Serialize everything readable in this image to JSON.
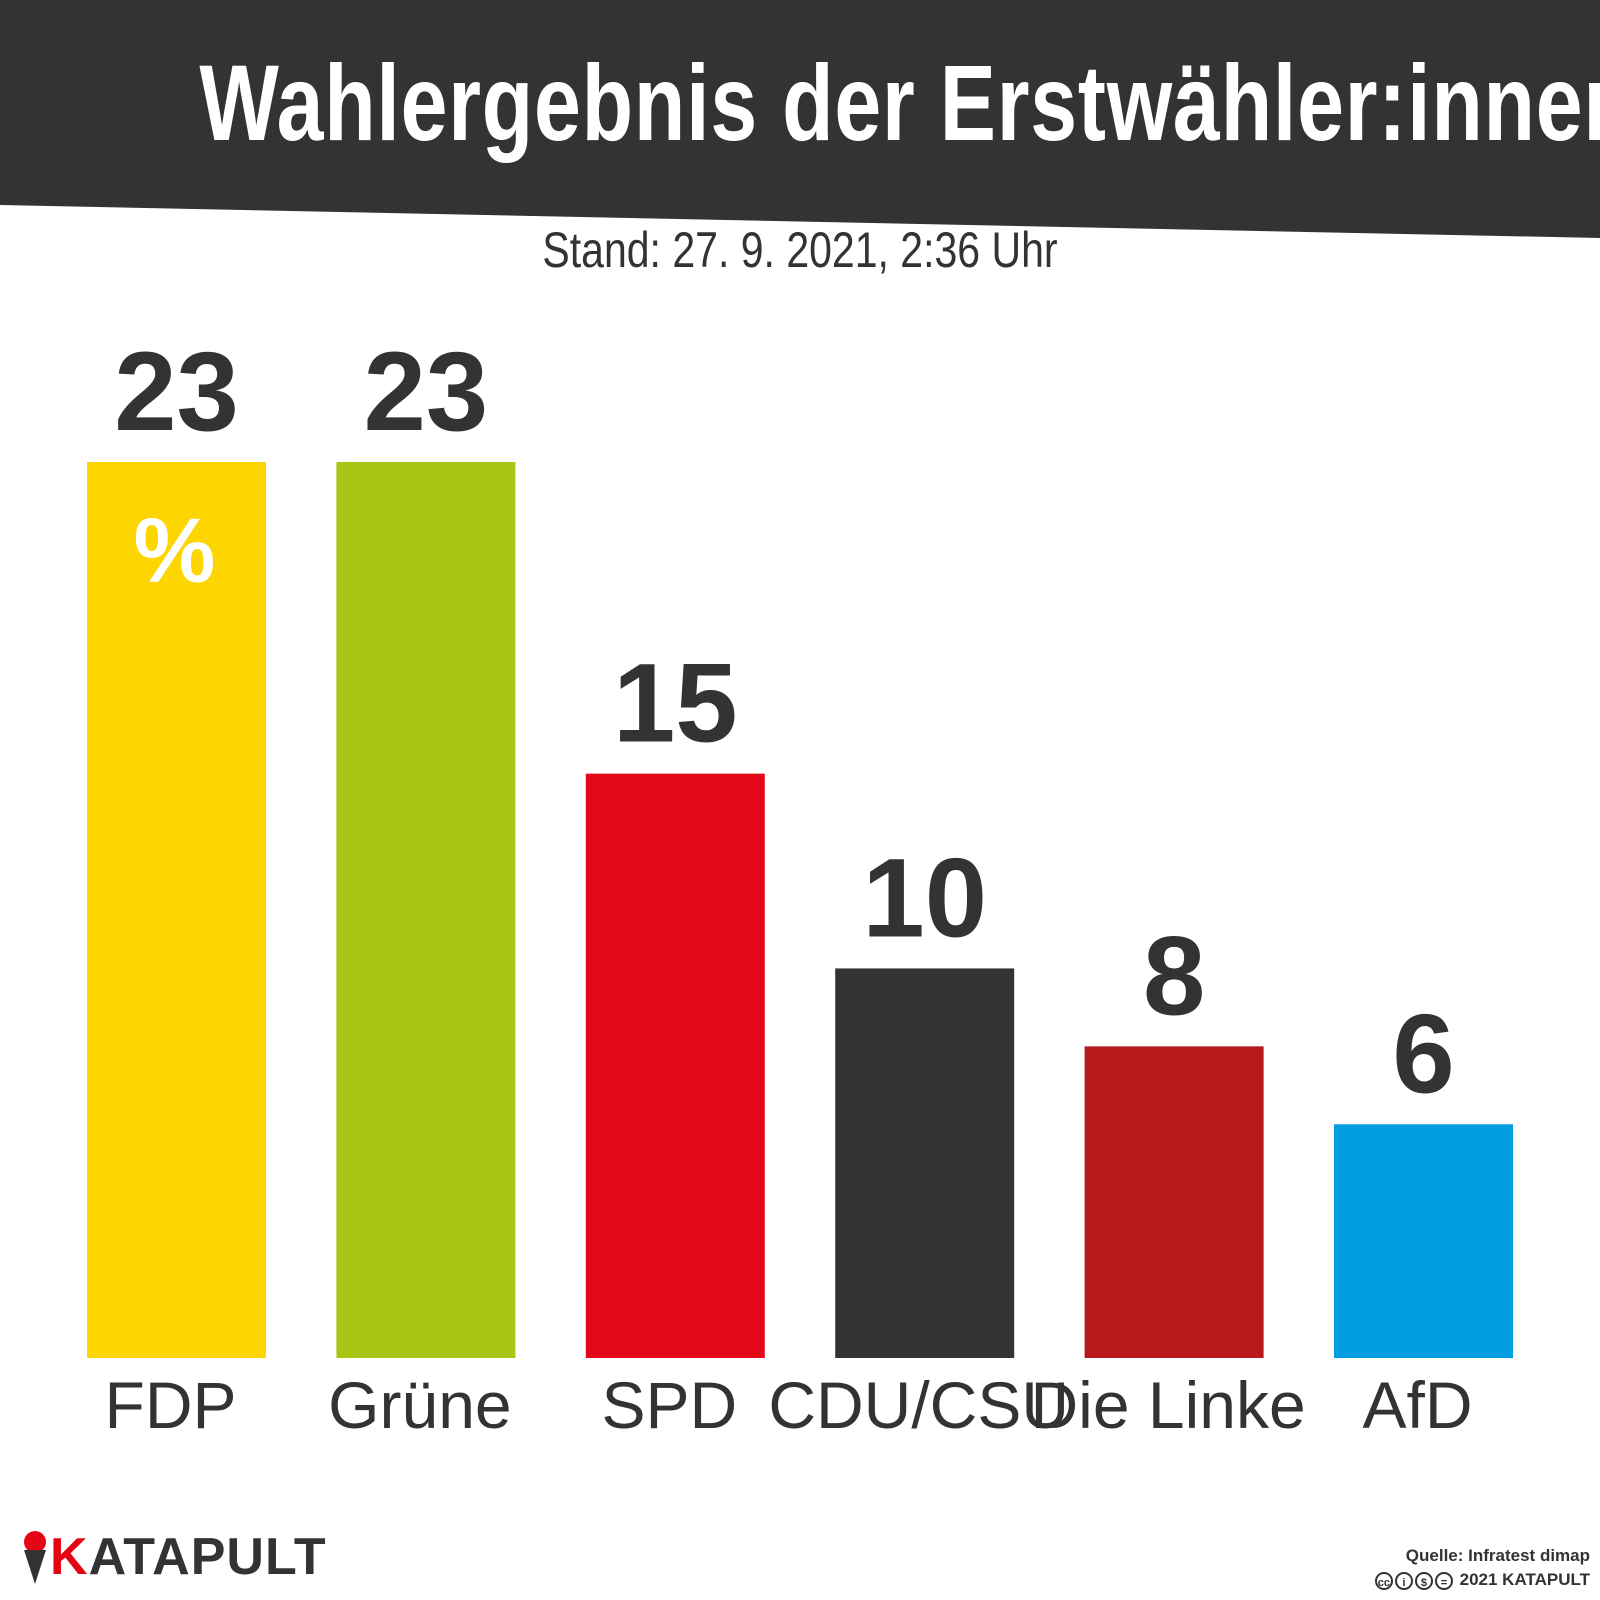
{
  "header": {
    "title": "Wahlergebnis der Erstwähler:innen",
    "subtitle": "Stand: 27. 9. 2021, 2:36 Uhr",
    "band_color": "#333333"
  },
  "chart_data": {
    "type": "bar",
    "title": "Wahlergebnis der Erstwähler:innen",
    "subtitle": "Stand: 27. 9. 2021, 2:36 Uhr",
    "unit": "%",
    "categories": [
      "FDP",
      "Grüne",
      "SPD",
      "CDU/CSU",
      "Die Linke",
      "AfD"
    ],
    "values": [
      23,
      23,
      15,
      10,
      8,
      6
    ],
    "colors": [
      "#fdd500",
      "#a8c614",
      "#e20918",
      "#333333",
      "#b8181b",
      "#009ee0"
    ],
    "data_labels": [
      "23",
      "23",
      "15",
      "10",
      "8",
      "6"
    ],
    "ylim": [
      0,
      23
    ],
    "grid": false,
    "legend": "none"
  },
  "branding": {
    "logo_first": "K",
    "logo_rest": "ATAPULT",
    "logo_icon": "ice-cream-catapult-icon",
    "accent": "#e30613"
  },
  "footer": {
    "source": "Quelle: Infratest dimap",
    "license_icons": [
      "cc-icon",
      "by-icon",
      "nc-icon",
      "nd-icon"
    ],
    "copyright": "2021 KATAPULT"
  }
}
